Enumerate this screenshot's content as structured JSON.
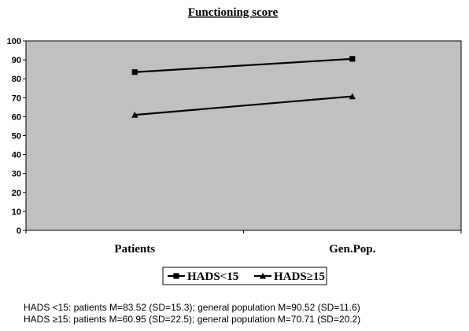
{
  "chart_data": {
    "type": "line",
    "title": "Functioning score",
    "xlabel": "",
    "ylabel": "",
    "categories": [
      "Patients",
      "Gen.Pop."
    ],
    "ylim": [
      0,
      100
    ],
    "yticks": [
      0,
      10,
      20,
      30,
      40,
      50,
      60,
      70,
      80,
      90,
      100
    ],
    "grid": false,
    "plot_background": "#c0c0c0",
    "legend_position": "bottom",
    "series": [
      {
        "name": "HADS<15",
        "values": [
          83.52,
          90.52
        ],
        "marker": "square",
        "color": "#000000"
      },
      {
        "name": "HADS≥15",
        "values": [
          60.95,
          70.71
        ],
        "marker": "triangle",
        "color": "#000000"
      }
    ]
  },
  "notes": [
    "HADS <15: patients M=83.52 (SD=15.3); general population M=90.52 (SD=11.6)",
    "HADS ≥15: patients M=60.95 (SD=22.5); general population M=70.71 (SD=20.2)"
  ]
}
